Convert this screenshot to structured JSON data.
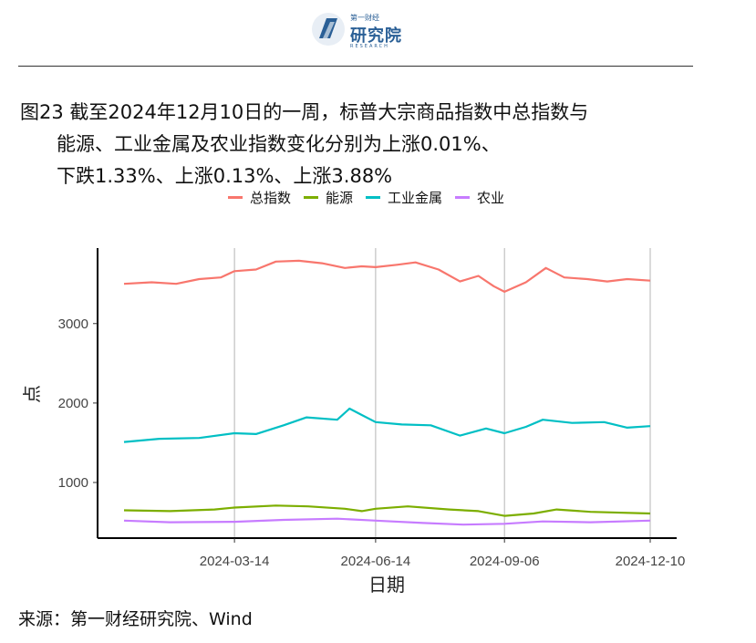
{
  "header": {
    "logo_top": "第一财经",
    "logo_name": "研究院",
    "logo_sub": "RESEARCH"
  },
  "figure": {
    "title_line1": "图23  截至2024年12月10日的一周，标普大宗商品指数中总指数与",
    "title_line2": "能源、工业金属及农业指数变化分别为上涨0.01%、",
    "title_line3": "下跌1.33%、上涨0.13%、上涨3.88%"
  },
  "chart_data": {
    "type": "line",
    "x_axis": {
      "label": "日期",
      "ticks": [
        "2024-03-14",
        "2024-06-14",
        "2024-09-06",
        "2024-12-10"
      ],
      "range": [
        "2024-01-02",
        "2024-12-10"
      ]
    },
    "y_axis": {
      "label": "点",
      "ticks": [
        1000,
        2000,
        3000
      ],
      "range": [
        300,
        3950
      ]
    },
    "grid": "vertical lines at x ticks",
    "legend_position": "top",
    "series": [
      {
        "name": "总指数",
        "color": "#F8766D",
        "points": [
          [
            "2024-01-02",
            3500
          ],
          [
            "2024-01-20",
            3520
          ],
          [
            "2024-02-05",
            3500
          ],
          [
            "2024-02-20",
            3560
          ],
          [
            "2024-03-05",
            3580
          ],
          [
            "2024-03-14",
            3660
          ],
          [
            "2024-03-28",
            3680
          ],
          [
            "2024-04-10",
            3780
          ],
          [
            "2024-04-25",
            3790
          ],
          [
            "2024-05-10",
            3760
          ],
          [
            "2024-05-25",
            3700
          ],
          [
            "2024-06-05",
            3720
          ],
          [
            "2024-06-14",
            3710
          ],
          [
            "2024-06-28",
            3740
          ],
          [
            "2024-07-10",
            3770
          ],
          [
            "2024-07-25",
            3680
          ],
          [
            "2024-08-08",
            3530
          ],
          [
            "2024-08-20",
            3600
          ],
          [
            "2024-08-30",
            3470
          ],
          [
            "2024-09-06",
            3400
          ],
          [
            "2024-09-20",
            3520
          ],
          [
            "2024-10-03",
            3700
          ],
          [
            "2024-10-15",
            3580
          ],
          [
            "2024-10-30",
            3560
          ],
          [
            "2024-11-12",
            3530
          ],
          [
            "2024-11-25",
            3560
          ],
          [
            "2024-12-10",
            3540
          ]
        ]
      },
      {
        "name": "能源",
        "color": "#7CAE00",
        "points": [
          [
            "2024-01-02",
            650
          ],
          [
            "2024-02-01",
            640
          ],
          [
            "2024-03-01",
            660
          ],
          [
            "2024-03-14",
            685
          ],
          [
            "2024-04-10",
            710
          ],
          [
            "2024-05-01",
            700
          ],
          [
            "2024-05-25",
            670
          ],
          [
            "2024-06-05",
            640
          ],
          [
            "2024-06-14",
            670
          ],
          [
            "2024-07-05",
            700
          ],
          [
            "2024-08-01",
            660
          ],
          [
            "2024-08-20",
            640
          ],
          [
            "2024-09-06",
            580
          ],
          [
            "2024-09-25",
            610
          ],
          [
            "2024-10-10",
            660
          ],
          [
            "2024-11-01",
            630
          ],
          [
            "2024-12-10",
            610
          ]
        ]
      },
      {
        "name": "工业金属",
        "color": "#00BFC4",
        "points": [
          [
            "2024-01-02",
            1510
          ],
          [
            "2024-01-25",
            1550
          ],
          [
            "2024-02-20",
            1560
          ],
          [
            "2024-03-14",
            1620
          ],
          [
            "2024-03-28",
            1610
          ],
          [
            "2024-04-15",
            1720
          ],
          [
            "2024-04-30",
            1820
          ],
          [
            "2024-05-20",
            1790
          ],
          [
            "2024-05-28",
            1930
          ],
          [
            "2024-06-05",
            1850
          ],
          [
            "2024-06-14",
            1760
          ],
          [
            "2024-07-01",
            1730
          ],
          [
            "2024-07-20",
            1720
          ],
          [
            "2024-08-08",
            1590
          ],
          [
            "2024-08-25",
            1680
          ],
          [
            "2024-09-06",
            1620
          ],
          [
            "2024-09-20",
            1700
          ],
          [
            "2024-10-01",
            1790
          ],
          [
            "2024-10-20",
            1750
          ],
          [
            "2024-11-10",
            1760
          ],
          [
            "2024-11-25",
            1690
          ],
          [
            "2024-12-10",
            1710
          ]
        ]
      },
      {
        "name": "农业",
        "color": "#C77CFF",
        "points": [
          [
            "2024-01-02",
            520
          ],
          [
            "2024-02-01",
            500
          ],
          [
            "2024-03-14",
            505
          ],
          [
            "2024-04-15",
            530
          ],
          [
            "2024-05-20",
            545
          ],
          [
            "2024-06-14",
            520
          ],
          [
            "2024-07-15",
            490
          ],
          [
            "2024-08-10",
            470
          ],
          [
            "2024-09-06",
            480
          ],
          [
            "2024-10-01",
            510
          ],
          [
            "2024-11-01",
            500
          ],
          [
            "2024-12-10",
            520
          ]
        ]
      }
    ]
  },
  "source": "来源：第一财经研究院、Wind"
}
